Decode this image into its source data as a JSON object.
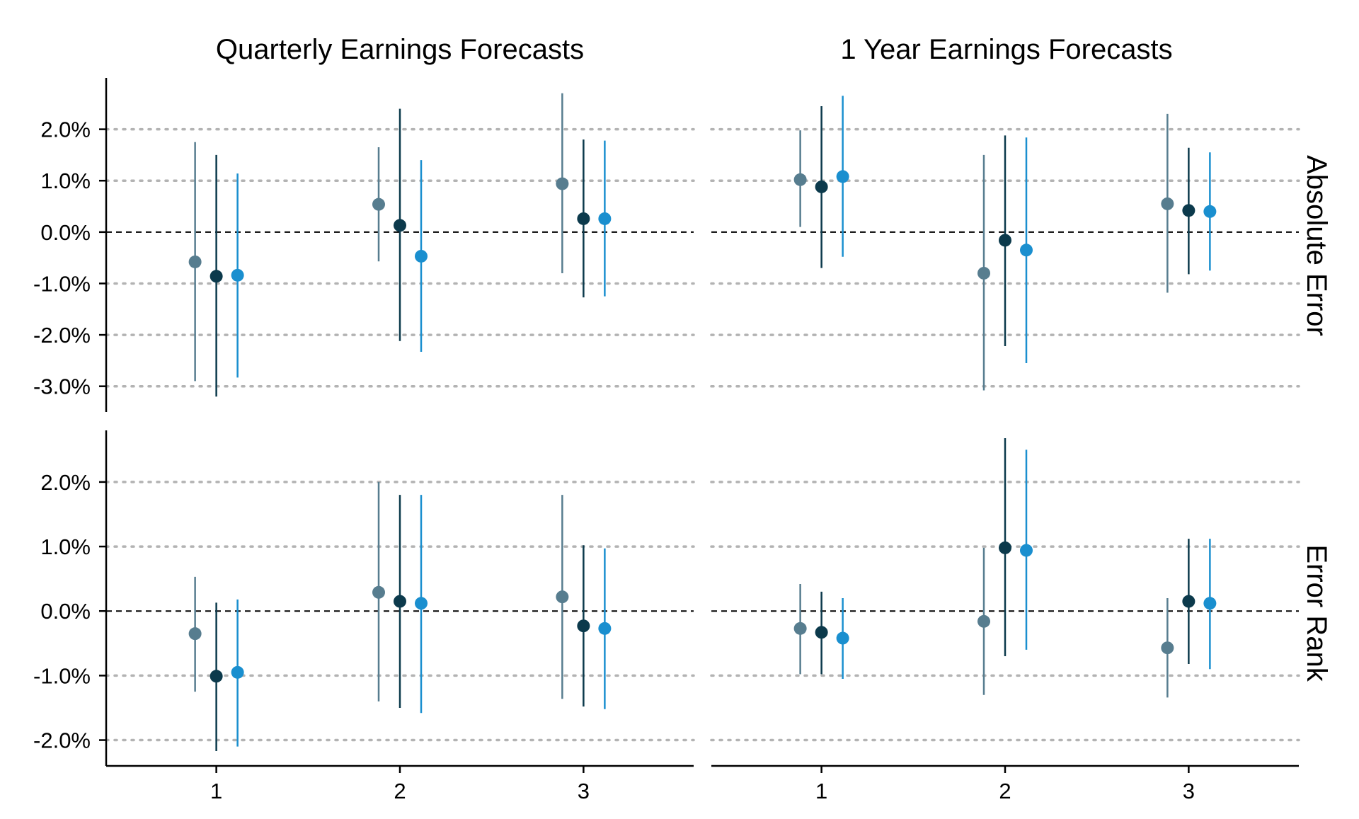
{
  "chart_data": {
    "type": "scatter",
    "columns": [
      "Quarterly Earnings Forecasts",
      "1 Year Earnings Forecasts"
    ],
    "rows": [
      "Absolute Error",
      "Error Rank"
    ],
    "x_ticks": [
      "1",
      "2",
      "3"
    ],
    "xlim": [
      0.4,
      3.6
    ],
    "series_colors": [
      "#577d8f",
      "#0c3a4c",
      "#1a8fcf"
    ],
    "reference_line_y": 0,
    "grid": "horizontal dotted",
    "panels": [
      {
        "column": 0,
        "row": 0,
        "ylim": [
          -3.5,
          3.0
        ],
        "y_ticks": [
          -3,
          -2,
          -1,
          0,
          1,
          2
        ],
        "y_tick_labels": [
          "-3.0%",
          "-2.0%",
          "-1.0%",
          "0.0%",
          "1.0%",
          "2.0%"
        ],
        "series": [
          {
            "points": [
              {
                "x": 1,
                "y": -0.58,
                "lo": -2.9,
                "hi": 1.75
              },
              {
                "x": 2,
                "y": 0.54,
                "lo": -0.57,
                "hi": 1.65
              },
              {
                "x": 3,
                "y": 0.94,
                "lo": -0.8,
                "hi": 2.7
              }
            ]
          },
          {
            "points": [
              {
                "x": 1,
                "y": -0.86,
                "lo": -3.2,
                "hi": 1.5
              },
              {
                "x": 2,
                "y": 0.13,
                "lo": -2.12,
                "hi": 2.4
              },
              {
                "x": 3,
                "y": 0.26,
                "lo": -1.27,
                "hi": 1.8
              }
            ]
          },
          {
            "points": [
              {
                "x": 1,
                "y": -0.84,
                "lo": -2.83,
                "hi": 1.14
              },
              {
                "x": 2,
                "y": -0.47,
                "lo": -2.33,
                "hi": 1.4
              },
              {
                "x": 3,
                "y": 0.26,
                "lo": -1.25,
                "hi": 1.78
              }
            ]
          }
        ]
      },
      {
        "column": 1,
        "row": 0,
        "ylim": [
          -3.5,
          3.0
        ],
        "y_ticks": [
          -3,
          -2,
          -1,
          0,
          1,
          2
        ],
        "y_tick_labels": [
          "-3.0%",
          "-2.0%",
          "-1.0%",
          "0.0%",
          "1.0%",
          "2.0%"
        ],
        "series": [
          {
            "points": [
              {
                "x": 1,
                "y": 1.02,
                "lo": 0.1,
                "hi": 1.98
              },
              {
                "x": 2,
                "y": -0.8,
                "lo": -3.08,
                "hi": 1.5
              },
              {
                "x": 3,
                "y": 0.55,
                "lo": -1.18,
                "hi": 2.3
              }
            ]
          },
          {
            "points": [
              {
                "x": 1,
                "y": 0.88,
                "lo": -0.7,
                "hi": 2.45
              },
              {
                "x": 2,
                "y": -0.16,
                "lo": -2.22,
                "hi": 1.88
              },
              {
                "x": 3,
                "y": 0.42,
                "lo": -0.82,
                "hi": 1.64
              }
            ]
          },
          {
            "points": [
              {
                "x": 1,
                "y": 1.08,
                "lo": -0.48,
                "hi": 2.65
              },
              {
                "x": 2,
                "y": -0.35,
                "lo": -2.55,
                "hi": 1.84
              },
              {
                "x": 3,
                "y": 0.4,
                "lo": -0.75,
                "hi": 1.55
              }
            ]
          }
        ]
      },
      {
        "column": 0,
        "row": 1,
        "ylim": [
          -2.4,
          2.8
        ],
        "y_ticks": [
          -2,
          -1,
          0,
          1,
          2
        ],
        "y_tick_labels": [
          "-2.0%",
          "-1.0%",
          "0.0%",
          "1.0%",
          "2.0%"
        ],
        "series": [
          {
            "points": [
              {
                "x": 1,
                "y": -0.35,
                "lo": -1.25,
                "hi": 0.53
              },
              {
                "x": 2,
                "y": 0.29,
                "lo": -1.4,
                "hi": 2.0
              },
              {
                "x": 3,
                "y": 0.22,
                "lo": -1.36,
                "hi": 1.8
              }
            ]
          },
          {
            "points": [
              {
                "x": 1,
                "y": -1.01,
                "lo": -2.17,
                "hi": 0.13
              },
              {
                "x": 2,
                "y": 0.15,
                "lo": -1.5,
                "hi": 1.8
              },
              {
                "x": 3,
                "y": -0.23,
                "lo": -1.48,
                "hi": 1.02
              }
            ]
          },
          {
            "points": [
              {
                "x": 1,
                "y": -0.95,
                "lo": -2.1,
                "hi": 0.18
              },
              {
                "x": 2,
                "y": 0.12,
                "lo": -1.58,
                "hi": 1.8
              },
              {
                "x": 3,
                "y": -0.27,
                "lo": -1.52,
                "hi": 0.97
              }
            ]
          }
        ]
      },
      {
        "column": 1,
        "row": 1,
        "ylim": [
          -2.4,
          2.8
        ],
        "y_ticks": [
          -2,
          -1,
          0,
          1,
          2
        ],
        "y_tick_labels": [
          "-2.0%",
          "-1.0%",
          "0.0%",
          "1.0%",
          "2.0%"
        ],
        "series": [
          {
            "points": [
              {
                "x": 1,
                "y": -0.27,
                "lo": -0.98,
                "hi": 0.42
              },
              {
                "x": 2,
                "y": -0.16,
                "lo": -1.3,
                "hi": 0.98
              },
              {
                "x": 3,
                "y": -0.57,
                "lo": -1.34,
                "hi": 0.2
              }
            ]
          },
          {
            "points": [
              {
                "x": 1,
                "y": -0.33,
                "lo": -0.98,
                "hi": 0.3
              },
              {
                "x": 2,
                "y": 0.98,
                "lo": -0.7,
                "hi": 2.68
              },
              {
                "x": 3,
                "y": 0.15,
                "lo": -0.82,
                "hi": 1.12
              }
            ]
          },
          {
            "points": [
              {
                "x": 1,
                "y": -0.42,
                "lo": -1.05,
                "hi": 0.2
              },
              {
                "x": 2,
                "y": 0.94,
                "lo": -0.6,
                "hi": 2.5
              },
              {
                "x": 3,
                "y": 0.12,
                "lo": -0.9,
                "hi": 1.12
              }
            ]
          }
        ]
      }
    ]
  }
}
